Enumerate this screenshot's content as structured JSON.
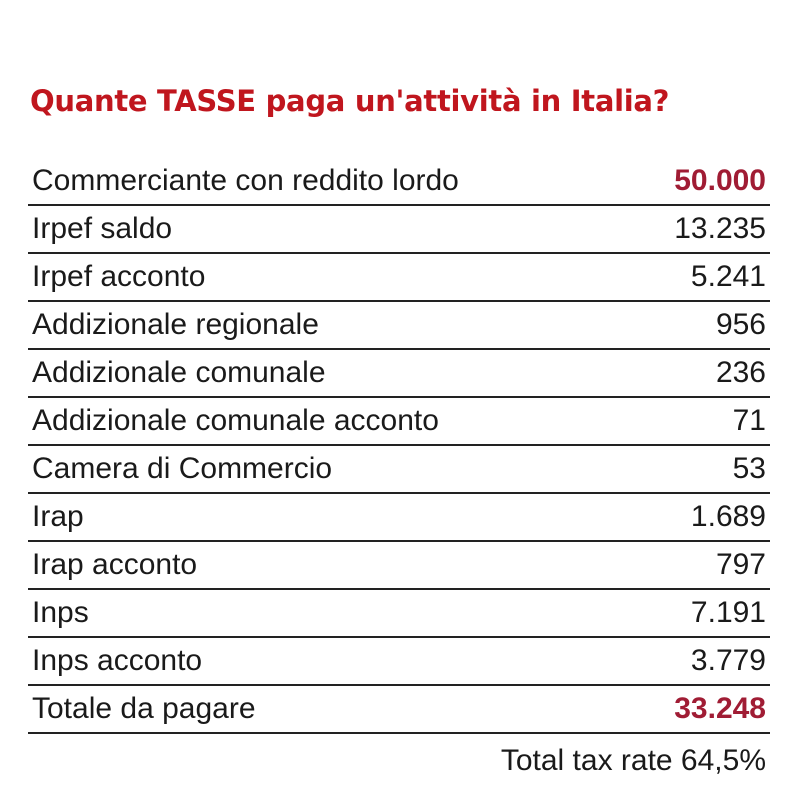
{
  "title": "Quante TASSE paga un'attività in Italia?",
  "table": {
    "rows": [
      [
        "Commerciante con reddito lordo",
        "50.000"
      ],
      [
        "Irpef saldo",
        "13.235"
      ],
      [
        "Irpef acconto",
        "5.241"
      ],
      [
        "Addizionale regionale",
        "956"
      ],
      [
        "Addizionale comunale",
        "236"
      ],
      [
        "Addizionale comunale acconto",
        "71"
      ],
      [
        "Camera di Commercio",
        "53"
      ],
      [
        "Irap",
        "1.689"
      ],
      [
        "Irap acconto",
        "797"
      ],
      [
        "Inps",
        "7.191"
      ],
      [
        "Inps acconto",
        "3.779"
      ],
      [
        "Totale da pagare",
        "33.248"
      ]
    ]
  },
  "footer": "Total tax rate 64,5%"
}
